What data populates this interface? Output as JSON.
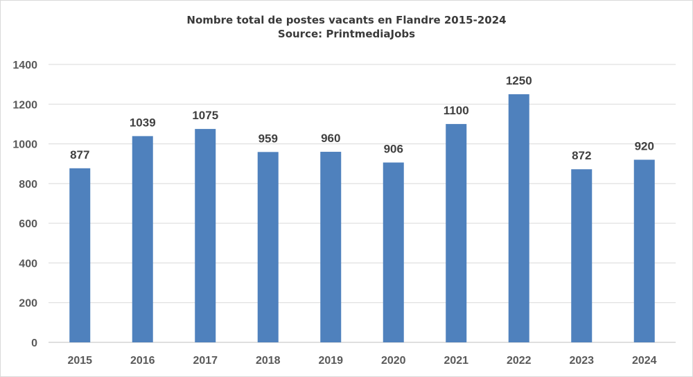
{
  "chart_data": {
    "type": "bar",
    "title": "Nombre total de postes vacants en Flandre 2015-2024",
    "subtitle": "Source: PrintmediaJobs",
    "xlabel": "",
    "ylabel": "",
    "categories": [
      "2015",
      "2016",
      "2017",
      "2018",
      "2019",
      "2020",
      "2021",
      "2022",
      "2023",
      "2024"
    ],
    "values": [
      877,
      1039,
      1075,
      959,
      960,
      906,
      1100,
      1250,
      872,
      920
    ],
    "data_labels": [
      "877",
      "1039",
      "1075",
      "959",
      "960",
      "906",
      "1100",
      "1250",
      "872",
      "920"
    ],
    "yticks": [
      "0",
      "200",
      "400",
      "600",
      "800",
      "1000",
      "1200",
      "1400"
    ],
    "ylim": [
      0,
      1400
    ],
    "grid": true,
    "legend": "none",
    "colors": {
      "bar": "#4f81bd",
      "grid": "#d9d9d9",
      "text": "#595959"
    }
  }
}
